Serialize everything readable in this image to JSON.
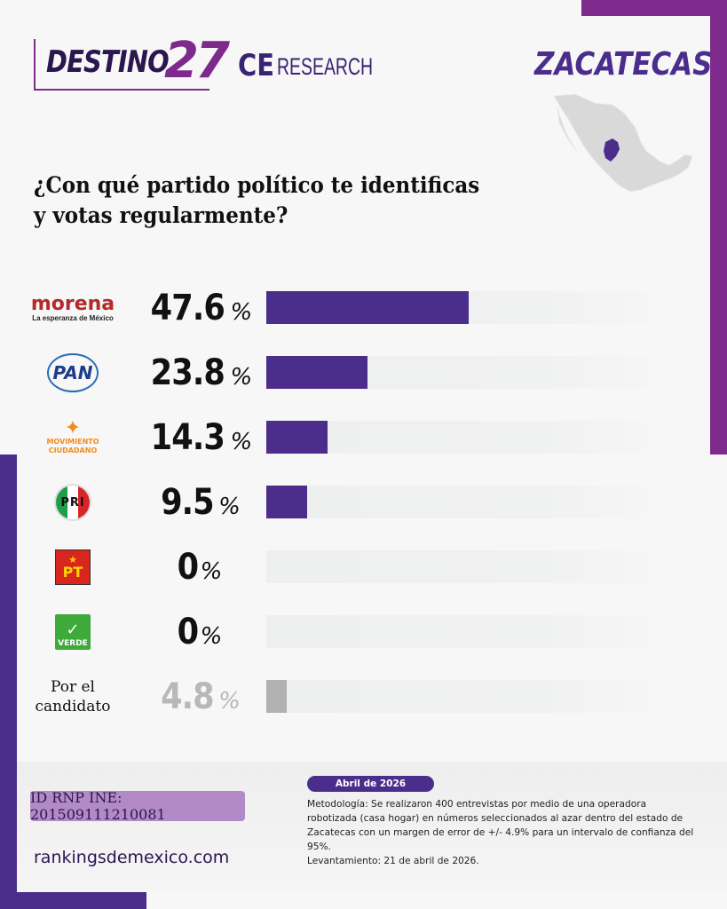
{
  "header": {
    "brand_destino": "DESTINO",
    "brand_number": "27",
    "brand_ce": "CE",
    "brand_research": "RESEARCH",
    "state": "ZACATECAS"
  },
  "question": {
    "line1": "¿Con qué partido político te identificas",
    "line2": "y votas regularmente?"
  },
  "colors": {
    "bar": "#4b2e8c",
    "bar_other": "#b1b1b1",
    "frame_top": "#7d2a8c",
    "frame_bottom": "#4b2e8c"
  },
  "logos": {
    "morena_word": "morena",
    "morena_tag": "La esperanza de México",
    "pan": "PAN",
    "mc_line1": "MOVIMIENTO",
    "mc_line2": "CIUDADANO",
    "pri": "PRI",
    "pt": "PT",
    "verde": "VERDE",
    "candidate_line1": "Por el",
    "candidate_line2": "candidato"
  },
  "chart_data": {
    "type": "bar",
    "orientation": "horizontal",
    "title": "¿Con qué partido político te identificas y votas regularmente?",
    "xlabel": "",
    "ylabel": "",
    "xlim": [
      0,
      100
    ],
    "unit": "%",
    "grid": false,
    "categories": [
      "Morena",
      "PAN",
      "Movimiento Ciudadano",
      "PRI",
      "PT",
      "Verde",
      "Por el candidato"
    ],
    "values": [
      47.6,
      23.8,
      14.3,
      9.5,
      0,
      0,
      4.8
    ],
    "labels": [
      "47.6",
      "23.8",
      "14.3",
      "9.5",
      "0",
      "0",
      "4.8"
    ]
  },
  "footer": {
    "ine_id": "ID RNP INE: 201509111210081",
    "website": "rankingsdemexico.com",
    "date": "Abril de 2026",
    "methodology": "Metodología: Se realizaron 400 entrevistas por medio de una operadora robotizada (casa hogar) en números seleccionados al azar dentro del estado de Zacatecas con un margen de error de +/- 4.9% para un intervalo de confianza del 95%.",
    "fieldwork": "Levantamiento: 21 de abril de 2026."
  }
}
